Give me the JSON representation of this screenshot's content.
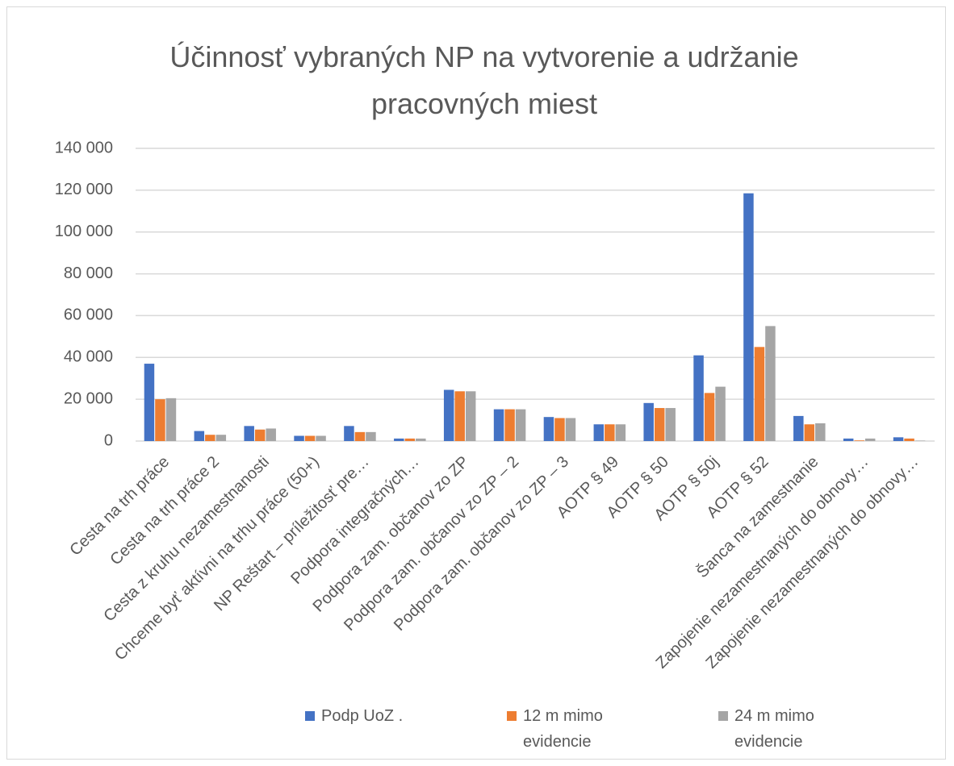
{
  "chart_data": {
    "type": "bar",
    "title": "Účinnosť vybraných NP  na vytvorenie a udržanie pracovných miest",
    "categories": [
      "Cesta na trh práce",
      "Cesta na trh práce 2",
      "Cesta z kruhu nezamestnanosti",
      "Chceme byť aktívni na trhu práce (50+)",
      "NP Reštart – príležitosť pre…",
      "Podpora integračných…",
      "Podpora zam. občanov zo ZP",
      "Podpora zam. občanov zo ZP – 2",
      "Podpora zam. občanov zo ZP – 3",
      "AOTP § 49",
      "AOTP § 50",
      "AOTP § 50j",
      "AOTP § 52",
      "Šanca na zamestnanie",
      "Zapojenie nezamestnaných do obnovy…",
      "Zapojenie nezamestnaných do obnovy…"
    ],
    "series": [
      {
        "name": "Podp UoZ .",
        "color": "#4472c4",
        "values": [
          37000,
          4800,
          7200,
          2500,
          7200,
          1200,
          24500,
          15200,
          11500,
          8000,
          18200,
          41000,
          118500,
          12000,
          1200,
          1800
        ]
      },
      {
        "name": "12 m mimo evidencie",
        "color": "#ed7d31",
        "values": [
          20000,
          3000,
          5500,
          2500,
          4300,
          1200,
          23800,
          15200,
          11000,
          8000,
          15800,
          23000,
          45000,
          8000,
          300,
          1200
        ]
      },
      {
        "name": "24 m mimo evidencie",
        "color": "#a5a5a5",
        "values": [
          20500,
          3000,
          6000,
          2500,
          4300,
          1200,
          23800,
          15200,
          11000,
          8000,
          15800,
          26000,
          55000,
          8500,
          1200,
          200
        ]
      }
    ],
    "ylim": [
      0,
      140000
    ],
    "yticks": [
      0,
      {
        "value": 20000,
        "label": "20 000"
      },
      {
        "value": 40000,
        "label": "40 000"
      },
      {
        "value": 60000,
        "label": "60 000"
      },
      {
        "value": 80000,
        "label": "80 000"
      },
      {
        "value": 100000,
        "label": "100 000"
      },
      {
        "value": 120000,
        "label": "120 000"
      },
      {
        "value": 140000,
        "label": "140 000"
      }
    ],
    "grid": true,
    "legend": "bottom"
  }
}
